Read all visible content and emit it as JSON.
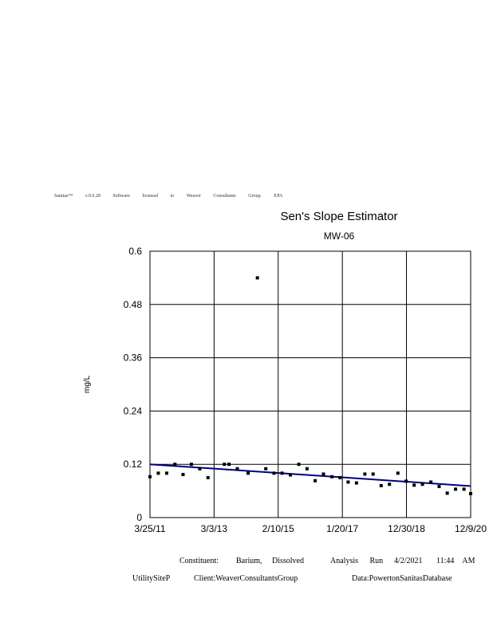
{
  "banner": "Sanitas™ v.9.6.28 Software licensed to Weaver Consultants Group. EPA",
  "chart_data": {
    "type": "scatter",
    "title": "Sen's Slope Estimator",
    "subtitle": "MW-06",
    "ylabel": "mg/L",
    "ylim": [
      0,
      0.6
    ],
    "yticks": [
      "0",
      "0.12",
      "0.24",
      "0.36",
      "0.48",
      "0.6"
    ],
    "xticks": [
      "3/25/11",
      "3/3/13",
      "2/10/15",
      "1/20/17",
      "12/30/18",
      "12/9/20"
    ],
    "xlim": [
      "3/25/11",
      "12/9/20"
    ],
    "grid": true,
    "colors": {
      "points": "#000000",
      "trend": "#000080"
    },
    "points": [
      {
        "x": "2011-03-25",
        "y": 0.092
      },
      {
        "x": "2011-06-25",
        "y": 0.1
      },
      {
        "x": "2011-09-26",
        "y": 0.1
      },
      {
        "x": "2011-12-26",
        "y": 0.12
      },
      {
        "x": "2012-03-25",
        "y": 0.097
      },
      {
        "x": "2012-06-25",
        "y": 0.12
      },
      {
        "x": "2012-09-26",
        "y": 0.11
      },
      {
        "x": "2012-12-26",
        "y": 0.09
      },
      {
        "x": "2013-06-25",
        "y": 0.12
      },
      {
        "x": "2013-08-15",
        "y": 0.12
      },
      {
        "x": "2013-11-15",
        "y": 0.11
      },
      {
        "x": "2014-03-15",
        "y": 0.1
      },
      {
        "x": "2014-06-25",
        "y": 0.54
      },
      {
        "x": "2014-09-26",
        "y": 0.11
      },
      {
        "x": "2014-12-26",
        "y": 0.1
      },
      {
        "x": "2015-03-25",
        "y": 0.1
      },
      {
        "x": "2015-06-25",
        "y": 0.096
      },
      {
        "x": "2015-09-26",
        "y": 0.12
      },
      {
        "x": "2015-12-26",
        "y": 0.11
      },
      {
        "x": "2016-03-25",
        "y": 0.083
      },
      {
        "x": "2016-06-25",
        "y": 0.098
      },
      {
        "x": "2016-09-26",
        "y": 0.092
      },
      {
        "x": "2016-12-26",
        "y": 0.09
      },
      {
        "x": "2017-03-25",
        "y": 0.08
      },
      {
        "x": "2017-06-25",
        "y": 0.078
      },
      {
        "x": "2017-09-26",
        "y": 0.098
      },
      {
        "x": "2017-12-26",
        "y": 0.098
      },
      {
        "x": "2018-03-25",
        "y": 0.072
      },
      {
        "x": "2018-06-25",
        "y": 0.075
      },
      {
        "x": "2018-09-26",
        "y": 0.1
      },
      {
        "x": "2018-12-26",
        "y": 0.082
      },
      {
        "x": "2019-03-25",
        "y": 0.073
      },
      {
        "x": "2019-06-25",
        "y": 0.075
      },
      {
        "x": "2019-09-26",
        "y": 0.08
      },
      {
        "x": "2019-12-26",
        "y": 0.07
      },
      {
        "x": "2020-03-25",
        "y": 0.055
      },
      {
        "x": "2020-06-25",
        "y": 0.064
      },
      {
        "x": "2020-09-26",
        "y": 0.064
      },
      {
        "x": "2020-12-09",
        "y": 0.054
      }
    ],
    "trend_line": {
      "start": {
        "x": "2011-03-25",
        "y": 0.12
      },
      "end": {
        "x": "2020-12-09",
        "y": 0.071
      }
    }
  },
  "footer": {
    "line1": {
      "constituent_label": "Constituent:",
      "constituent_value": "Barium, Dissolved",
      "analysis_label": "Analysis Run",
      "run_date": "4/2/2021",
      "run_time": "11:44 AM"
    },
    "line2": {
      "site": "UtilitySiteP",
      "client": "Client:WeaverConsultantsGroup",
      "data": "Data:PowertonSanitasDatabase"
    }
  }
}
